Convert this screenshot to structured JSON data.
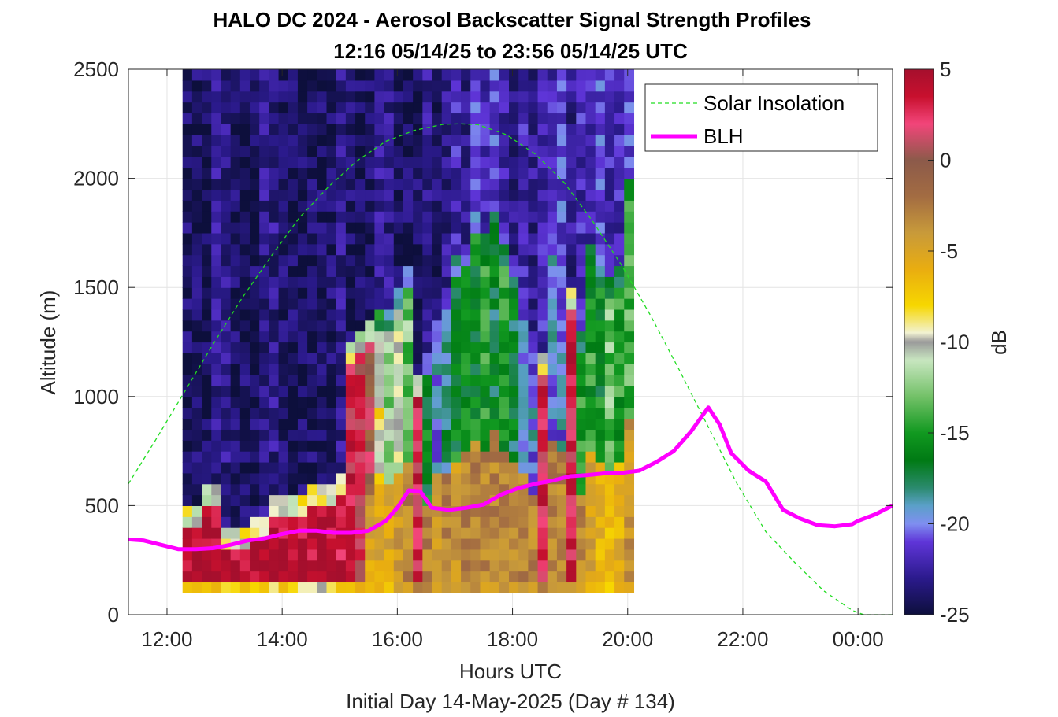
{
  "chart_data": {
    "type": "heatmap",
    "title": "HALO DC 2024 - Aerosol Backscatter Signal Strength Profiles",
    "subtitle": "12:16 05/14/25 to 23:56 05/14/25  UTC",
    "xlabel": "Hours UTC",
    "xlabel2": "Initial Day 14-May-2025 (Day # 134)",
    "ylabel": "Altitude (m)",
    "colorbar_label": "dB",
    "xlim": [
      11.33,
      24.6
    ],
    "ylim": [
      0,
      2500
    ],
    "x_ticks": [
      12,
      14,
      16,
      18,
      20,
      22,
      24
    ],
    "x_tick_labels": [
      "12:00",
      "14:00",
      "16:00",
      "18:00",
      "20:00",
      "22:00",
      "00:00"
    ],
    "y_ticks": [
      0,
      500,
      1000,
      1500,
      2000,
      2500
    ],
    "y_tick_labels": [
      "0",
      "500",
      "1000",
      "1500",
      "2000",
      "2500"
    ],
    "clim": [
      -25,
      5
    ],
    "cbar_ticks": [
      5,
      0,
      -5,
      -10,
      -15,
      -20,
      -25
    ],
    "cbar_tick_labels": [
      "5",
      "0",
      "-5",
      "-10",
      "-15",
      "-20",
      "-25"
    ],
    "grid": true,
    "legend_position": "top-right",
    "colormap": [
      [
        -25,
        "#0d0f3c"
      ],
      [
        -23,
        "#2b1a8c"
      ],
      [
        -21,
        "#5f35d8"
      ],
      [
        -20,
        "#7f8ff0"
      ],
      [
        -19,
        "#5aa0c8"
      ],
      [
        -18,
        "#2a8a6c"
      ],
      [
        -16.5,
        "#007a14"
      ],
      [
        -15,
        "#119920"
      ],
      [
        -13,
        "#73c168"
      ],
      [
        -11,
        "#c8e6c0"
      ],
      [
        -10,
        "#9a9a9a"
      ],
      [
        -9.5,
        "#f2f2d2"
      ],
      [
        -8,
        "#f7d700"
      ],
      [
        -6,
        "#e9ad10"
      ],
      [
        -4,
        "#c89a3a"
      ],
      [
        -2,
        "#a36c42"
      ],
      [
        0,
        "#8c5a4a"
      ],
      [
        2,
        "#f2457a"
      ],
      [
        3.5,
        "#c8102e"
      ],
      [
        5,
        "#a50f2d"
      ]
    ],
    "profile_time_start": 12.27,
    "profile_time_step": 0.1667,
    "altitude_start": 100,
    "altitude_step": 50,
    "profile_summary": "Columns from 12:16 to 23:56 UTC; each holds: near-ground dB value, boundary-layer top altitude, boundary-layer dB, upper-layer dB",
    "profiles": [
      [
        -7,
        360,
        4.5,
        -24
      ],
      [
        -7,
        380,
        4.5,
        -24
      ],
      [
        -7,
        470,
        4.5,
        -24
      ],
      [
        -7,
        470,
        4.5,
        -23
      ],
      [
        -7,
        300,
        4.5,
        -23
      ],
      [
        -7,
        300,
        4.5,
        -24
      ],
      [
        -7,
        300,
        4.5,
        -24
      ],
      [
        -7,
        340,
        4.5,
        -24
      ],
      [
        -7,
        340,
        4.5,
        -23
      ],
      [
        -8,
        420,
        4.5,
        -23
      ],
      [
        -8,
        440,
        4.5,
        -24
      ],
      [
        -8,
        440,
        4.5,
        -24
      ],
      [
        -9,
        440,
        4.5,
        -24
      ],
      [
        -9,
        460,
        4.5,
        -24
      ],
      [
        -9,
        460,
        4.5,
        -24
      ],
      [
        -8,
        480,
        4.5,
        -24
      ],
      [
        -7,
        540,
        4,
        -23
      ],
      [
        -7,
        1120,
        3,
        -24
      ],
      [
        -7,
        1180,
        2,
        -24
      ],
      [
        -6,
        1220,
        0,
        -24
      ],
      [
        -6,
        1260,
        -9,
        -23
      ],
      [
        -6,
        1280,
        -12,
        -23
      ],
      [
        -5,
        1400,
        -11,
        -24
      ],
      [
        -4,
        1460,
        -13,
        -24
      ],
      [
        -4,
        1000,
        3,
        -24
      ],
      [
        -4,
        1100,
        -16,
        -23
      ],
      [
        -5,
        1340,
        -20,
        -24
      ],
      [
        -4,
        1380,
        -18,
        -23
      ],
      [
        -5,
        1520,
        -16,
        -22
      ],
      [
        -4,
        1580,
        -16,
        -23
      ],
      [
        -4,
        1720,
        -16,
        -21
      ],
      [
        -4,
        1640,
        -15,
        -22
      ],
      [
        -4,
        1780,
        -17,
        -21
      ],
      [
        -4,
        1580,
        -15,
        -22
      ],
      [
        -4,
        1520,
        -17,
        -23
      ],
      [
        -4,
        1380,
        -20,
        -22
      ],
      [
        -4,
        1200,
        -20,
        -23
      ],
      [
        -4,
        1100,
        3,
        -22
      ],
      [
        -4,
        1700,
        -20,
        -22
      ],
      [
        -4,
        1640,
        -20,
        -21
      ],
      [
        -4,
        1360,
        3,
        -23
      ],
      [
        -4,
        1160,
        -15,
        -22
      ],
      [
        -6,
        1600,
        -15,
        -22
      ],
      [
        -7,
        1520,
        -16,
        -21
      ],
      [
        -8,
        1440,
        -13,
        -22
      ],
      [
        -7,
        1500,
        -15,
        -22
      ],
      [
        -5,
        1900,
        -14,
        -21
      ]
    ],
    "series": [
      {
        "name": "Solar Insolation",
        "color": "#22dd22",
        "style": "dashed",
        "x": [
          11.33,
          11.8,
          12.3,
          12.8,
          13.3,
          13.8,
          14.3,
          14.8,
          15.3,
          15.8,
          16.3,
          16.8,
          17.1,
          17.4,
          17.9,
          18.4,
          18.9,
          19.4,
          19.9,
          20.4,
          20.9,
          21.4,
          21.9,
          22.4,
          22.9,
          23.4,
          23.9,
          24.1,
          24.6
        ],
        "y": [
          600,
          800,
          1020,
          1240,
          1450,
          1640,
          1820,
          1960,
          2080,
          2170,
          2220,
          2248,
          2250,
          2246,
          2200,
          2110,
          1980,
          1800,
          1600,
          1370,
          1120,
          860,
          600,
          380,
          240,
          110,
          20,
          0,
          0
        ]
      },
      {
        "name": "BLH",
        "color": "#ff00ff",
        "style": "solid",
        "x": [
          11.33,
          11.6,
          11.9,
          12.2,
          12.5,
          12.8,
          13.1,
          13.4,
          13.7,
          14.0,
          14.3,
          14.6,
          14.9,
          15.2,
          15.5,
          15.8,
          16.0,
          16.2,
          16.4,
          16.6,
          16.9,
          17.2,
          17.5,
          17.8,
          18.1,
          18.4,
          18.7,
          19.0,
          19.3,
          19.6,
          19.9,
          20.2,
          20.5,
          20.8,
          21.1,
          21.4,
          21.6,
          21.8,
          22.1,
          22.4,
          22.7,
          23.0,
          23.3,
          23.6,
          23.9,
          24.0,
          24.3,
          24.6
        ],
        "y": [
          345,
          340,
          320,
          300,
          300,
          305,
          320,
          340,
          350,
          370,
          385,
          385,
          375,
          375,
          385,
          430,
          490,
          570,
          565,
          490,
          480,
          490,
          505,
          550,
          580,
          600,
          615,
          635,
          640,
          648,
          650,
          660,
          700,
          750,
          840,
          950,
          870,
          740,
          660,
          610,
          480,
          440,
          410,
          405,
          415,
          430,
          460,
          500
        ]
      }
    ]
  }
}
